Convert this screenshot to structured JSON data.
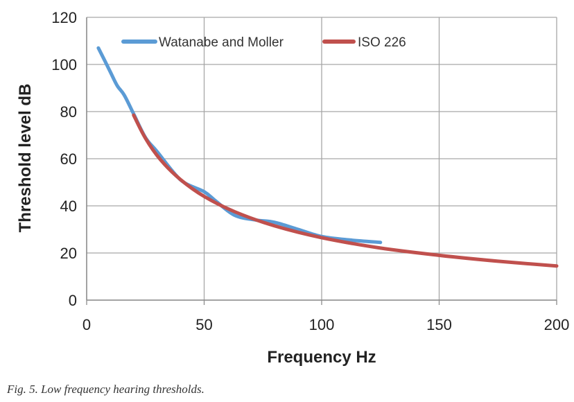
{
  "caption": "Fig. 5. Low frequency hearing thresholds.",
  "chart_data": {
    "type": "line",
    "xlabel": "Frequency Hz",
    "ylabel": "Threshold level dB",
    "xlim": [
      0,
      200
    ],
    "ylim": [
      0,
      120
    ],
    "x_ticks": [
      0,
      50,
      100,
      150,
      200
    ],
    "y_ticks": [
      0,
      20,
      40,
      60,
      80,
      100,
      120
    ],
    "grid": true,
    "legend_position": "top",
    "series": [
      {
        "name": "Watanabe and Moller",
        "color": "#5b9bd5",
        "points": [
          [
            5,
            107
          ],
          [
            10,
            97
          ],
          [
            13,
            91
          ],
          [
            16,
            87
          ],
          [
            20,
            79
          ],
          [
            25,
            69
          ],
          [
            30,
            63
          ],
          [
            40,
            51
          ],
          [
            50,
            46
          ],
          [
            55,
            42
          ],
          [
            63,
            36
          ],
          [
            72,
            34
          ],
          [
            80,
            33
          ],
          [
            90,
            30
          ],
          [
            100,
            27
          ],
          [
            112,
            25.5
          ],
          [
            125,
            24.5
          ]
        ]
      },
      {
        "name": "ISO 226",
        "color": "#c0504d",
        "points": [
          [
            20,
            78.5
          ],
          [
            25,
            68.7
          ],
          [
            31.5,
            59.5
          ],
          [
            40,
            51.1
          ],
          [
            50,
            44
          ],
          [
            63,
            37.5
          ],
          [
            80,
            31.5
          ],
          [
            100,
            26.5
          ],
          [
            125,
            22.1
          ],
          [
            150,
            19
          ],
          [
            175,
            16.5
          ],
          [
            200,
            14.5
          ]
        ]
      }
    ]
  }
}
